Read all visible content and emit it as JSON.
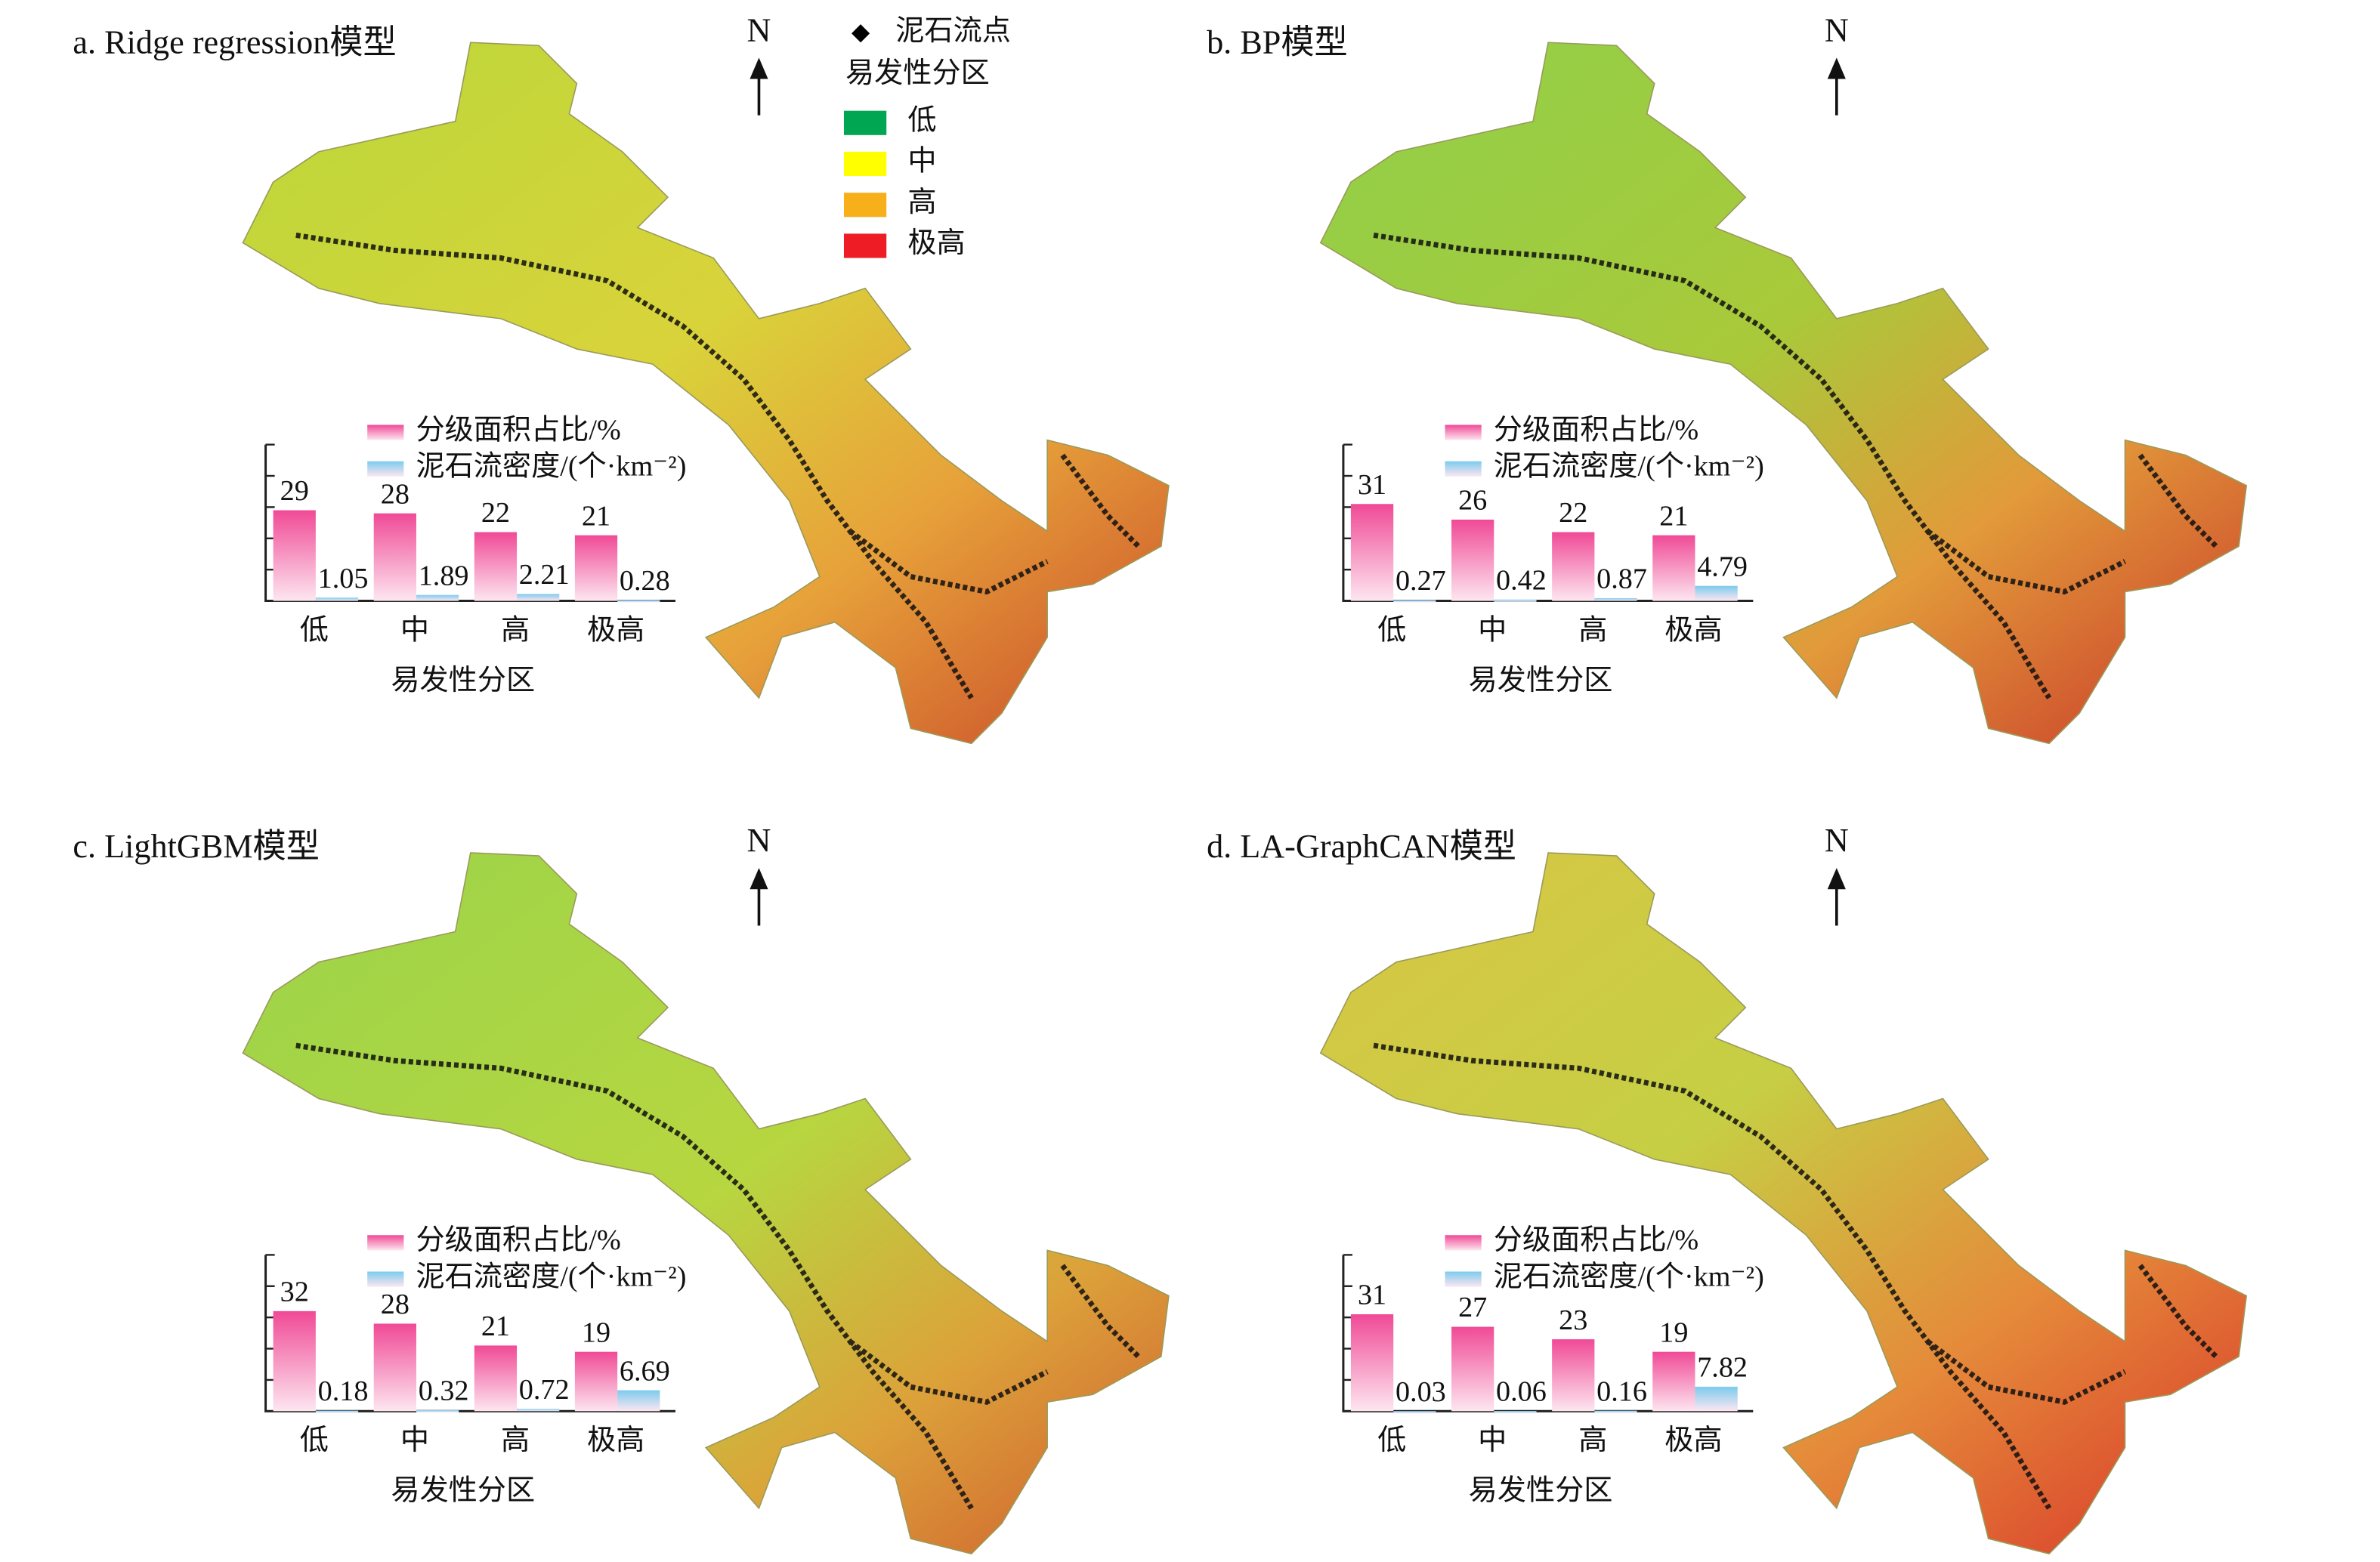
{
  "chart_data": [
    {
      "type": "bar",
      "title": "a. Ridge regression模型",
      "north": "N",
      "xlabel": "易发性分区",
      "categories": [
        "低",
        "中",
        "高",
        "极高"
      ],
      "series": [
        {
          "name": "分级面积占比/%",
          "color": "#f04a96",
          "values": [
            29,
            28,
            22,
            21
          ]
        },
        {
          "name": "泥石流密度/(个·km⁻²)",
          "color": "#7ccbee",
          "values": [
            1.05,
            1.89,
            2.21,
            0.28
          ]
        }
      ],
      "ylim": [
        0,
        50
      ],
      "yticks": [
        0,
        10,
        20,
        30,
        40,
        50
      ]
    },
    {
      "type": "bar",
      "title": "b. BP模型",
      "north": "N",
      "xlabel": "易发性分区",
      "categories": [
        "低",
        "中",
        "高",
        "极高"
      ],
      "series": [
        {
          "name": "分级面积占比/%",
          "color": "#f04a96",
          "values": [
            31,
            26,
            22,
            21
          ]
        },
        {
          "name": "泥石流密度/(个·km⁻²)",
          "color": "#7ccbee",
          "values": [
            0.27,
            0.42,
            0.87,
            4.79
          ]
        }
      ],
      "ylim": [
        0,
        50
      ],
      "yticks": [
        0,
        10,
        20,
        30,
        40,
        50
      ]
    },
    {
      "type": "bar",
      "title": "c. LightGBM模型",
      "north": "N",
      "xlabel": "易发性分区",
      "categories": [
        "低",
        "中",
        "高",
        "极高"
      ],
      "series": [
        {
          "name": "分级面积占比/%",
          "color": "#f04a96",
          "values": [
            32,
            28,
            21,
            19
          ]
        },
        {
          "name": "泥石流密度/(个·km⁻²)",
          "color": "#7ccbee",
          "values": [
            0.18,
            0.32,
            0.72,
            6.69
          ]
        }
      ],
      "ylim": [
        0,
        50
      ],
      "yticks": [
        0,
        10,
        20,
        30,
        40,
        50
      ]
    },
    {
      "type": "bar",
      "title": "d. LA-GraphCAN模型",
      "north": "N",
      "xlabel": "易发性分区",
      "categories": [
        "低",
        "中",
        "高",
        "极高"
      ],
      "series": [
        {
          "name": "分级面积占比/%",
          "color": "#f04a96",
          "values": [
            31,
            27,
            23,
            19
          ]
        },
        {
          "name": "泥石流密度/(个·km⁻²)",
          "color": "#7ccbee",
          "values": [
            0.03,
            0.06,
            0.16,
            7.82
          ]
        }
      ],
      "ylim": [
        0,
        50
      ],
      "yticks": [
        0,
        10,
        20,
        30,
        40,
        50
      ]
    }
  ],
  "map_legend": {
    "point": "泥石流点",
    "title": "易发性分区",
    "classes": [
      {
        "label": "低",
        "color": "#00a651"
      },
      {
        "label": "中",
        "color": "#ffff00"
      },
      {
        "label": "高",
        "color": "#f7b01a"
      },
      {
        "label": "极高",
        "color": "#ee1c24"
      }
    ]
  }
}
